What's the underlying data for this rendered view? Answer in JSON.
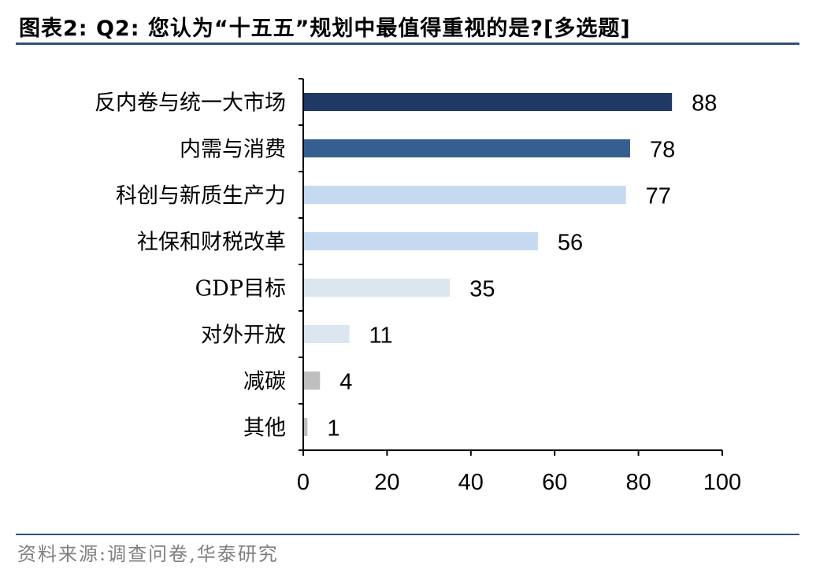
{
  "header": {
    "title": "图表2:  Q2:  您认为“十五五”规划中最值得重视的是?[多选题]"
  },
  "footer": {
    "source": "资料来源:调查问卷,华泰研究"
  },
  "chart_data": {
    "type": "bar",
    "orientation": "horizontal",
    "categories": [
      "反内卷与统一大市场",
      "内需与消费",
      "科创与新质生产力",
      "社保和财税改革",
      "GDP目标",
      "对外开放",
      "减碳",
      "其他"
    ],
    "values": [
      88,
      78,
      77,
      56,
      35,
      11,
      4,
      1
    ],
    "colors": [
      "#1f3864",
      "#365f91",
      "#c5d9f1",
      "#c5d9f1",
      "#dce6f1",
      "#dce6f1",
      "#bfbfbf",
      "#bfbfbf"
    ],
    "xlim": [
      0,
      100
    ],
    "xticks": [
      0,
      20,
      40,
      60,
      80,
      100
    ],
    "title": "",
    "xlabel": "",
    "ylabel": "",
    "grid": false,
    "legend": "none"
  }
}
